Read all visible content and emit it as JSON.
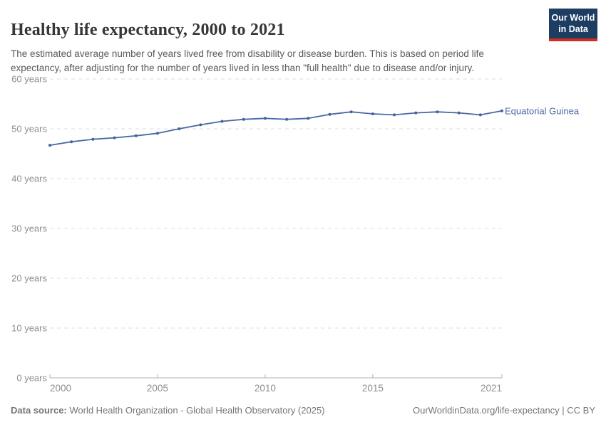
{
  "header": {
    "title": "Healthy life expectancy, 2000 to 2021",
    "subtitle": "The estimated average number of years lived free from disability or disease burden. This is based on period life expectancy, after adjusting for the number of years lived in less than \"full health\" due to disease and/or injury.",
    "logo": {
      "line1": "Our World",
      "line2": "in Data",
      "bg_color": "#1d3d63",
      "accent_color": "#cf2e22"
    }
  },
  "chart_data": {
    "type": "line",
    "title": "Healthy life expectancy, 2000 to 2021",
    "x": [
      2000,
      2001,
      2002,
      2003,
      2004,
      2005,
      2006,
      2007,
      2008,
      2009,
      2010,
      2011,
      2012,
      2013,
      2014,
      2015,
      2016,
      2017,
      2018,
      2019,
      2020,
      2021
    ],
    "series": [
      {
        "name": "Equatorial Guinea",
        "color": "#4b69a3",
        "values": [
          46.7,
          47.4,
          47.9,
          48.2,
          48.6,
          49.1,
          50.0,
          50.8,
          51.5,
          51.9,
          52.1,
          51.9,
          52.1,
          52.9,
          53.4,
          53.0,
          52.8,
          53.2,
          53.4,
          53.2,
          52.8,
          53.6
        ]
      }
    ],
    "xlabel": "",
    "ylabel": "",
    "ylim": [
      0,
      60
    ],
    "ytick_interval": 10,
    "ytick_suffix": " years",
    "xticks": [
      2000,
      2005,
      2010,
      2015,
      2021
    ],
    "grid": "horizontal-dashed",
    "legend_position": "end-of-line-label",
    "colors": {
      "gridline": "#dcdcdc",
      "axis": "#b3b3b3",
      "tick_label": "#8e8e8e",
      "marker": "#44619e"
    }
  },
  "footer": {
    "source_label": "Data source:",
    "source_text": " World Health Organization - Global Health Observatory (2025)",
    "link_text": "OurWorldinData.org/life-expectancy | CC BY"
  }
}
